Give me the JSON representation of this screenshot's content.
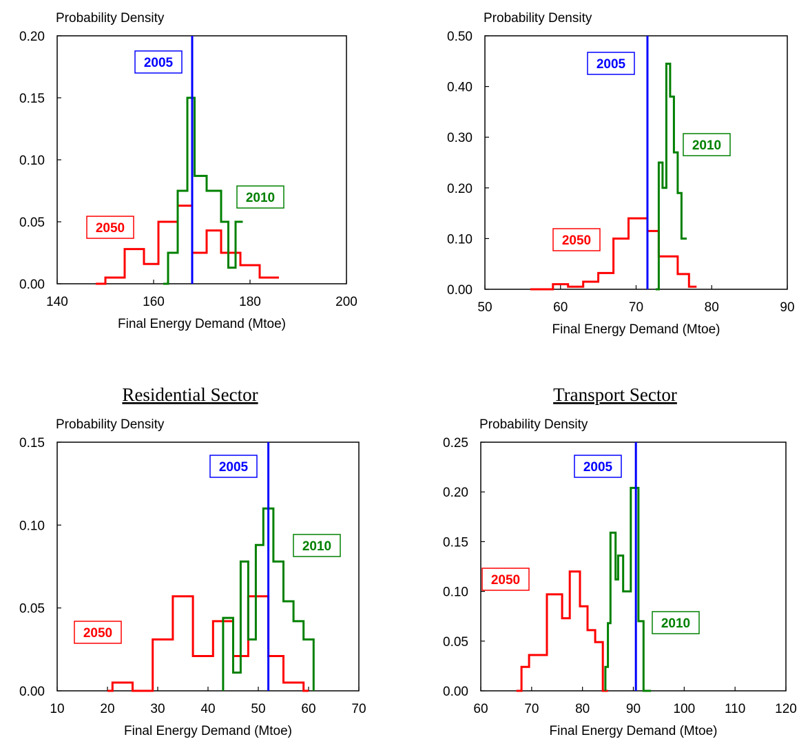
{
  "chart_data": [
    {
      "type": "step-histogram",
      "title": "",
      "ylabel": "Probability Density",
      "xlabel": "Final Energy Demand (Mtoe)",
      "xlim": [
        140,
        200
      ],
      "ylim": [
        0,
        0.2
      ],
      "xticks": [
        "140",
        "160",
        "180",
        "200"
      ],
      "yticks": [
        "0.00",
        "0.05",
        "0.10",
        "0.15",
        "0.20"
      ],
      "colors": {
        "2050": "#ff0000",
        "2010": "#008000",
        "2005": "#0000ff"
      },
      "series": [
        {
          "name": "2050",
          "x": [
            148,
            150,
            150,
            154,
            154,
            158,
            158,
            161,
            161,
            165,
            165,
            168,
            168,
            171,
            171,
            174,
            174,
            178,
            178,
            182,
            182,
            186
          ],
          "y": [
            0,
            0,
            0.005,
            0.005,
            0.028,
            0.028,
            0.016,
            0.016,
            0.05,
            0.05,
            0.063,
            0.063,
            0.025,
            0.025,
            0.043,
            0.043,
            0.025,
            0.025,
            0.015,
            0.015,
            0.005,
            0.005
          ]
        },
        {
          "name": "2010",
          "x": [
            162,
            163,
            163,
            165,
            165,
            167,
            167,
            168.5,
            168.5,
            171,
            171,
            174,
            174,
            175.5,
            175.5,
            177,
            177,
            178.5
          ],
          "y": [
            0,
            0,
            0.025,
            0.025,
            0.075,
            0.075,
            0.15,
            0.15,
            0.087,
            0.087,
            0.075,
            0.075,
            0.05,
            0.05,
            0.013,
            0.013,
            0.05,
            0.05
          ]
        }
      ],
      "marker_line": {
        "name": "2005",
        "x": 168
      }
    },
    {
      "type": "step-histogram",
      "title": "",
      "ylabel": "Probability Density",
      "xlabel": "Final Energy Demand (Mtoe)",
      "xlim": [
        50,
        90
      ],
      "ylim": [
        0,
        0.5
      ],
      "xticks": [
        "50",
        "60",
        "70",
        "80",
        "90"
      ],
      "yticks": [
        "0.00",
        "0.10",
        "0.20",
        "0.30",
        "0.40",
        "0.50"
      ],
      "colors": {
        "2050": "#ff0000",
        "2010": "#008000",
        "2005": "#0000ff"
      },
      "series": [
        {
          "name": "2050",
          "x": [
            56,
            59,
            59,
            61,
            61,
            63,
            63,
            65,
            65,
            67,
            67,
            69,
            69,
            71.5,
            71.5,
            73,
            73,
            75.5,
            75.5,
            77,
            77,
            78
          ],
          "y": [
            0,
            0,
            0.01,
            0.01,
            0.005,
            0.005,
            0.015,
            0.015,
            0.032,
            0.032,
            0.1,
            0.1,
            0.14,
            0.14,
            0.115,
            0.115,
            0.065,
            0.065,
            0.03,
            0.03,
            0.005,
            0.005
          ]
        },
        {
          "name": "2010",
          "x": [
            72.6,
            73,
            73,
            73.5,
            73.5,
            74,
            74,
            74.5,
            74.5,
            75,
            75,
            75.5,
            75.5,
            76,
            76,
            76.7
          ],
          "y": [
            0,
            0,
            0.25,
            0.25,
            0.2,
            0.2,
            0.445,
            0.445,
            0.38,
            0.38,
            0.27,
            0.27,
            0.19,
            0.19,
            0.1,
            0.1
          ]
        }
      ],
      "marker_line": {
        "name": "2005",
        "x": 71.5
      }
    },
    {
      "type": "step-histogram",
      "title": "Residential Sector",
      "ylabel": "Probability Density",
      "xlabel": "Final Energy Demand (Mtoe)",
      "xlim": [
        10,
        70
      ],
      "ylim": [
        0,
        0.15
      ],
      "xticks": [
        "10",
        "20",
        "30",
        "40",
        "50",
        "60",
        "70"
      ],
      "yticks": [
        "0.00",
        "0.05",
        "0.10",
        "0.15"
      ],
      "colors": {
        "2050": "#ff0000",
        "2010": "#008000",
        "2005": "#0000ff"
      },
      "series": [
        {
          "name": "2050",
          "x": [
            20,
            21,
            21,
            25,
            25,
            29,
            29,
            33,
            33,
            37,
            37,
            41,
            41,
            45,
            45,
            48,
            48,
            52,
            52,
            55,
            55,
            59,
            59,
            60
          ],
          "y": [
            0,
            0,
            0.005,
            0.005,
            0,
            0,
            0.031,
            0.031,
            0.057,
            0.057,
            0.021,
            0.021,
            0.042,
            0.042,
            0.021,
            0.021,
            0.057,
            0.057,
            0.021,
            0.021,
            0.005,
            0.005,
            0,
            0
          ]
        },
        {
          "name": "2010",
          "x": [
            43,
            43,
            43,
            45,
            45,
            46.5,
            46.5,
            48,
            48,
            49.5,
            49.5,
            51,
            51,
            53,
            53,
            55,
            55,
            57,
            57,
            59,
            59,
            61,
            61,
            61
          ]
        }
      ],
      "marker_line": {
        "name": "2005",
        "x": 52
      }
    },
    {
      "type": "step-histogram",
      "title": "Transport Sector",
      "ylabel": "Probability Density",
      "xlabel": "Final Energy Demand (Mtoe)",
      "xlim": [
        60,
        120
      ],
      "ylim": [
        0,
        0.25
      ],
      "xticks": [
        "60",
        "70",
        "80",
        "90",
        "100",
        "110",
        "120"
      ],
      "yticks": [
        "0.00",
        "0.05",
        "0.10",
        "0.15",
        "0.20",
        "0.25"
      ],
      "colors": {
        "2050": "#ff0000",
        "2010": "#008000",
        "2005": "#0000ff"
      },
      "series": [
        {
          "name": "2050",
          "x": [
            67,
            68,
            68,
            69.5,
            69.5,
            71,
            71,
            73,
            73,
            76,
            76,
            77.5,
            77.5,
            79.5,
            79.5,
            81,
            81,
            82.5,
            82.5,
            84,
            84,
            85
          ],
          "y": [
            0,
            0,
            0.024,
            0.024,
            0.036,
            0.036,
            0.036,
            0.036,
            0.097,
            0.097,
            0.073,
            0.073,
            0.12,
            0.12,
            0.085,
            0.085,
            0.061,
            0.061,
            0.049,
            0.049,
            0,
            0
          ]
        },
        {
          "name": "2010",
          "x": [
            84.5,
            84.5,
            84.5,
            85,
            85,
            85.5,
            85.5,
            86.5,
            86.5,
            87,
            87,
            88,
            88,
            89.5,
            89.5,
            91,
            91,
            92,
            92,
            93,
            93,
            93.5
          ]
        }
      ],
      "marker_line": {
        "name": "2005",
        "x": 90.5
      }
    }
  ]
}
